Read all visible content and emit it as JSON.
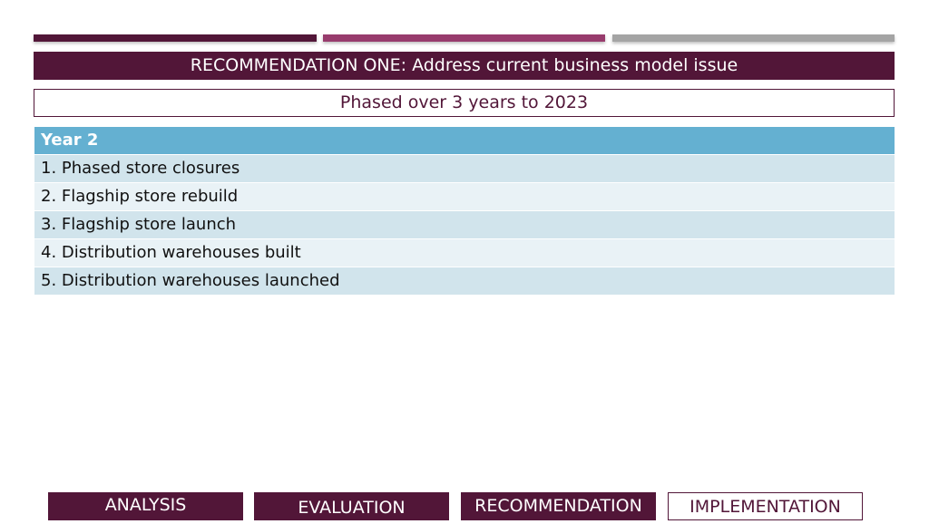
{
  "colors": {
    "primary": "#521638",
    "magenta": "#983c6d",
    "gray": "#a4a4a4",
    "table_header": "#64b0d1",
    "row_dark": "#d1e4ec",
    "row_light": "#e9f2f6"
  },
  "title": "RECOMMENDATION ONE: Address current business model issue",
  "subtitle": "Phased over 3 years to 2023",
  "table": {
    "header": "Year 2",
    "rows": [
      "1. Phased store closures",
      "2. Flagship store rebuild",
      "3. Flagship store launch",
      "4. Distribution warehouses built",
      "5. Distribution warehouses launched"
    ]
  },
  "nav": {
    "tabs": [
      {
        "label": "ANALYSIS",
        "active": false
      },
      {
        "label": "EVALUATION",
        "active": false
      },
      {
        "label": "RECOMMENDATION",
        "active": false
      },
      {
        "label": "IMPLEMENTATION",
        "active": true
      }
    ]
  }
}
